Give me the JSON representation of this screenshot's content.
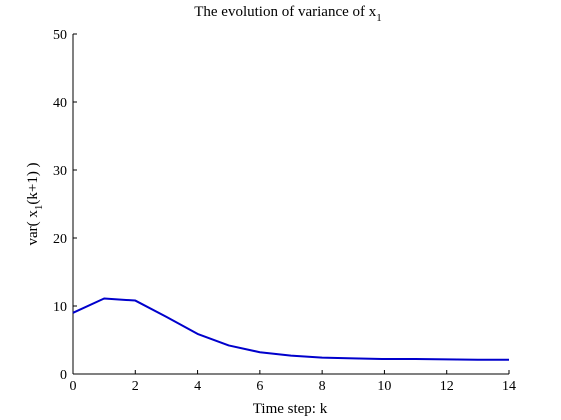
{
  "chart_data": {
    "type": "line",
    "title": {
      "main": "The evolution of variance of x",
      "sub": "1"
    },
    "xlabel": "Time step: k",
    "ylabel": {
      "pre": "var( x",
      "sub": "1",
      "post": "(k+1) )"
    },
    "xlim": [
      0,
      14
    ],
    "ylim": [
      0,
      50
    ],
    "xticks": [
      0,
      2,
      4,
      6,
      8,
      10,
      12,
      14
    ],
    "yticks": [
      0,
      10,
      20,
      30,
      40,
      50
    ],
    "grid": false,
    "colors": {
      "line": "#0000cc",
      "axis": "#000000"
    },
    "series": [
      {
        "x": [
          0,
          1,
          2,
          3,
          4,
          5,
          6,
          7,
          8,
          9,
          10,
          11,
          12,
          13,
          14
        ],
        "values": [
          9.0,
          11.1,
          10.8,
          8.4,
          5.9,
          4.2,
          3.2,
          2.7,
          2.4,
          2.3,
          2.2,
          2.2,
          2.15,
          2.1,
          2.1
        ]
      }
    ]
  }
}
